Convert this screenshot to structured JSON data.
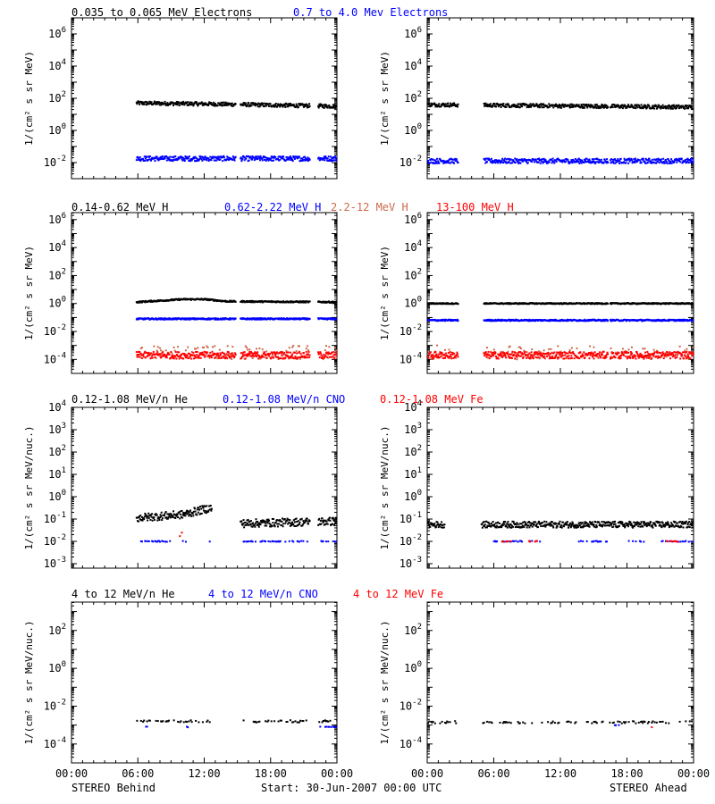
{
  "footer": {
    "left": "STEREO Behind",
    "center": "Start: 30-Jun-2007 00:00 UTC",
    "right": "STEREO Ahead"
  },
  "x_ticks": [
    "00:00",
    "06:00",
    "12:00",
    "18:00",
    "00:00"
  ],
  "titles": [
    [
      {
        "text": "0.035 to 0.065 MeV Electrons",
        "color": "#000000"
      },
      {
        "text": "0.7 to 4.0 Mev Electrons",
        "color": "#0000ff"
      }
    ],
    [
      {
        "text": "0.14-0.62 MeV H",
        "color": "#000000"
      },
      {
        "text": "0.62-2.22 MeV H",
        "color": "#0000ff"
      },
      {
        "text": "2.2-12 MeV H",
        "color": "#cd6a4a"
      },
      {
        "text": "13-100 MeV H",
        "color": "#ff0000"
      }
    ],
    [
      {
        "text": "0.12-1.08 MeV/n He",
        "color": "#000000"
      },
      {
        "text": "0.12-1.08 MeV/n CNO",
        "color": "#0000ff"
      },
      {
        "text": "0.12-1.08 MeV Fe",
        "color": "#ff0000"
      }
    ],
    [
      {
        "text": "4 to 12 MeV/n He",
        "color": "#000000"
      },
      {
        "text": "4 to 12 MeV/n CNO",
        "color": "#0000ff"
      },
      {
        "text": "4 to 12 MeV Fe",
        "color": "#ff0000"
      }
    ]
  ],
  "chart_data": [
    {
      "type": "scatter",
      "spacecraft": "STEREO Behind",
      "row": 0,
      "ylabel": "1/(cm² s sr MeV)",
      "y_log": true,
      "ylim_exp": [
        -3,
        7
      ],
      "ytick_exps": [
        -2,
        0,
        2,
        4,
        6
      ],
      "xlim_hours": [
        0,
        24
      ],
      "series": [
        {
          "color": "#000000",
          "gaps": [
            [
              0,
              5.8
            ],
            [
              14.8,
              15.2
            ],
            [
              21.5,
              22.2
            ]
          ],
          "base": 1.65,
          "noise": 0.12,
          "drift": [
            [
              5.8,
              1.7
            ],
            [
              12,
              1.65
            ],
            [
              24,
              1.5
            ]
          ]
        },
        {
          "color": "#0000ff",
          "gaps": [
            [
              0,
              5.8
            ],
            [
              14.8,
              15.2
            ],
            [
              21.5,
              22.2
            ]
          ],
          "base": -1.75,
          "noise": 0.15,
          "drift": []
        }
      ]
    },
    {
      "type": "scatter",
      "spacecraft": "STEREO Ahead",
      "row": 0,
      "ylabel": "1/(cm² s sr MeV)",
      "y_log": true,
      "ylim_exp": [
        -3,
        7
      ],
      "ytick_exps": [
        -2,
        0,
        2,
        4,
        6
      ],
      "xlim_hours": [
        0,
        24
      ],
      "series": [
        {
          "color": "#000000",
          "gaps": [
            [
              2.7,
              5.0
            ],
            [
              16.2,
              16.4
            ]
          ],
          "base": 1.55,
          "noise": 0.12,
          "drift": [
            [
              0,
              1.6
            ],
            [
              24,
              1.45
            ]
          ]
        },
        {
          "color": "#0000ff",
          "gaps": [
            [
              2.7,
              5.0
            ],
            [
              16.2,
              16.4
            ]
          ],
          "base": -1.9,
          "noise": 0.15,
          "drift": []
        }
      ]
    },
    {
      "type": "scatter",
      "spacecraft": "STEREO Behind",
      "row": 1,
      "ylabel": "1/(cm² s sr MeV)",
      "y_log": true,
      "ylim_exp": [
        -5,
        6.5
      ],
      "ytick_exps": [
        -4,
        -2,
        0,
        2,
        4,
        6
      ],
      "xlim_hours": [
        0,
        24
      ],
      "series": [
        {
          "color": "#000000",
          "gaps": [
            [
              0,
              5.8
            ],
            [
              14.8,
              15.2
            ],
            [
              21.5,
              22.2
            ]
          ],
          "base": 0.15,
          "noise": 0.05,
          "drift": [
            [
              5.8,
              0.1
            ],
            [
              10,
              0.3
            ],
            [
              12,
              0.3
            ],
            [
              14,
              0.15
            ],
            [
              24,
              0.1
            ]
          ]
        },
        {
          "color": "#0000ff",
          "gaps": [
            [
              0,
              5.8
            ],
            [
              14.8,
              15.2
            ],
            [
              21.5,
              22.2
            ]
          ],
          "base": -1.1,
          "noise": 0.05,
          "drift": []
        },
        {
          "color": "#cd6a4a",
          "gaps": [
            [
              0,
              5.8
            ],
            [
              14.8,
              15.2
            ],
            [
              21.5,
              22.2
            ]
          ],
          "base": -3.5,
          "noise": 0.5,
          "drift": [],
          "sparse": true
        },
        {
          "color": "#ff0000",
          "gaps": [
            [
              0,
              5.8
            ],
            [
              14.8,
              15.2
            ],
            [
              21.5,
              22.2
            ]
          ],
          "base": -3.7,
          "noise": 0.25,
          "drift": []
        }
      ]
    },
    {
      "type": "scatter",
      "spacecraft": "STEREO Ahead",
      "row": 1,
      "ylabel": "1/(cm² s sr MeV)",
      "y_log": true,
      "ylim_exp": [
        -5,
        6.5
      ],
      "ytick_exps": [
        -4,
        -2,
        0,
        2,
        4,
        6
      ],
      "xlim_hours": [
        0,
        24
      ],
      "series": [
        {
          "color": "#000000",
          "gaps": [
            [
              2.7,
              5.0
            ],
            [
              16.2,
              16.4
            ]
          ],
          "base": 0.0,
          "noise": 0.04,
          "drift": []
        },
        {
          "color": "#0000ff",
          "gaps": [
            [
              2.7,
              5.0
            ],
            [
              16.2,
              16.4
            ]
          ],
          "base": -1.2,
          "noise": 0.05,
          "drift": []
        },
        {
          "color": "#cd6a4a",
          "gaps": [
            [
              2.7,
              5.0
            ],
            [
              16.2,
              16.4
            ]
          ],
          "base": -3.5,
          "noise": 0.5,
          "drift": [],
          "sparse": true
        },
        {
          "color": "#ff0000",
          "gaps": [
            [
              2.7,
              5.0
            ],
            [
              16.2,
              16.4
            ]
          ],
          "base": -3.7,
          "noise": 0.25,
          "drift": []
        }
      ]
    },
    {
      "type": "scatter",
      "spacecraft": "STEREO Behind",
      "row": 2,
      "ylabel": "1/(cm² s sr MeV/nuc.)",
      "y_log": true,
      "ylim_exp": [
        -3.2,
        4
      ],
      "ytick_exps": [
        -3,
        -2,
        -1,
        0,
        1,
        2,
        3,
        4
      ],
      "xlim_hours": [
        0,
        24
      ],
      "series": [
        {
          "color": "#000000",
          "gaps": [
            [
              0,
              5.8
            ],
            [
              12.6,
              15.2
            ],
            [
              21.5,
              22.2
            ]
          ],
          "base": -0.95,
          "noise": 0.18,
          "drift": [
            [
              5.8,
              -0.95
            ],
            [
              10,
              -0.8
            ],
            [
              12.5,
              -0.5
            ],
            [
              15.2,
              -1.2
            ],
            [
              24,
              -1.1
            ]
          ]
        },
        {
          "color": "#0000ff",
          "gaps": [
            [
              0,
              6.2
            ],
            [
              10.4,
              12.4
            ],
            [
              12.6,
              15.4
            ],
            [
              21.5,
              22.4
            ]
          ],
          "base": -2.0,
          "noise": 0.02,
          "drift": [],
          "sparse": true
        },
        {
          "color": "#ff0000",
          "gaps": [
            [
              0,
              9.5
            ],
            [
              10,
              24
            ]
          ],
          "base": -1.7,
          "noise": 0.1,
          "drift": [],
          "sparse": true
        }
      ]
    },
    {
      "type": "scatter",
      "spacecraft": "STEREO Ahead",
      "row": 2,
      "ylabel": "1/(cm² s sr MeV/nuc.)",
      "y_log": true,
      "ylim_exp": [
        -3.2,
        4
      ],
      "ytick_exps": [
        -3,
        -2,
        -1,
        0,
        1,
        2,
        3,
        4
      ],
      "xlim_hours": [
        0,
        24
      ],
      "series": [
        {
          "color": "#000000",
          "gaps": [
            [
              1.5,
              4.8
            ]
          ],
          "base": -1.25,
          "noise": 0.14,
          "drift": []
        },
        {
          "color": "#0000ff",
          "gaps": [
            [
              0,
              5.0
            ],
            [
              10.5,
              13.5
            ],
            [
              16.2,
              17.8
            ],
            [
              19.5,
              21.0
            ]
          ],
          "base": -2.0,
          "noise": 0.02,
          "drift": [],
          "sparse": true
        },
        {
          "color": "#ff0000",
          "gaps": [
            [
              0,
              6.5
            ],
            [
              7.5,
              9.0
            ],
            [
              10,
              21.5
            ],
            [
              22.5,
              24
            ]
          ],
          "base": -2.0,
          "noise": 0.02,
          "drift": [],
          "sparse": true
        }
      ]
    },
    {
      "type": "scatter",
      "spacecraft": "STEREO Behind",
      "row": 3,
      "ylabel": "1/(cm² s sr MeV/nuc.)",
      "y_log": true,
      "ylim_exp": [
        -5,
        3.5
      ],
      "ytick_exps": [
        -4,
        -2,
        0,
        2
      ],
      "xlim_hours": [
        0,
        24
      ],
      "series": [
        {
          "color": "#000000",
          "gaps": [
            [
              0,
              5.8
            ],
            [
              12.5,
              15.2
            ],
            [
              21.5,
              22.2
            ]
          ],
          "base": -2.8,
          "noise": 0.06,
          "drift": [],
          "sparse": true
        },
        {
          "color": "#0000ff",
          "gaps": [
            [
              0,
              6.5
            ],
            [
              7,
              10
            ],
            [
              10.5,
              22.4
            ]
          ],
          "base": -3.1,
          "noise": 0.02,
          "drift": [],
          "sparse": true
        }
      ]
    },
    {
      "type": "scatter",
      "spacecraft": "STEREO Ahead",
      "row": 3,
      "ylabel": "1/(cm² s sr MeV/nuc.)",
      "y_log": true,
      "ylim_exp": [
        -5,
        3.5
      ],
      "ytick_exps": [
        -4,
        -2,
        0,
        2
      ],
      "xlim_hours": [
        0,
        24
      ],
      "series": [
        {
          "color": "#000000",
          "gaps": [
            [
              2.7,
              4.8
            ]
          ],
          "base": -2.85,
          "noise": 0.06,
          "drift": [],
          "sparse": true
        },
        {
          "color": "#0000ff",
          "gaps": [
            [
              0,
              16.8
            ],
            [
              17.4,
              24
            ]
          ],
          "base": -3.0,
          "noise": 0.02,
          "drift": [],
          "sparse": true
        },
        {
          "color": "#ff0000",
          "gaps": [
            [
              0,
              19.8
            ],
            [
              20.2,
              24
            ]
          ],
          "base": -3.1,
          "noise": 0.02,
          "drift": [],
          "sparse": true
        }
      ]
    }
  ]
}
